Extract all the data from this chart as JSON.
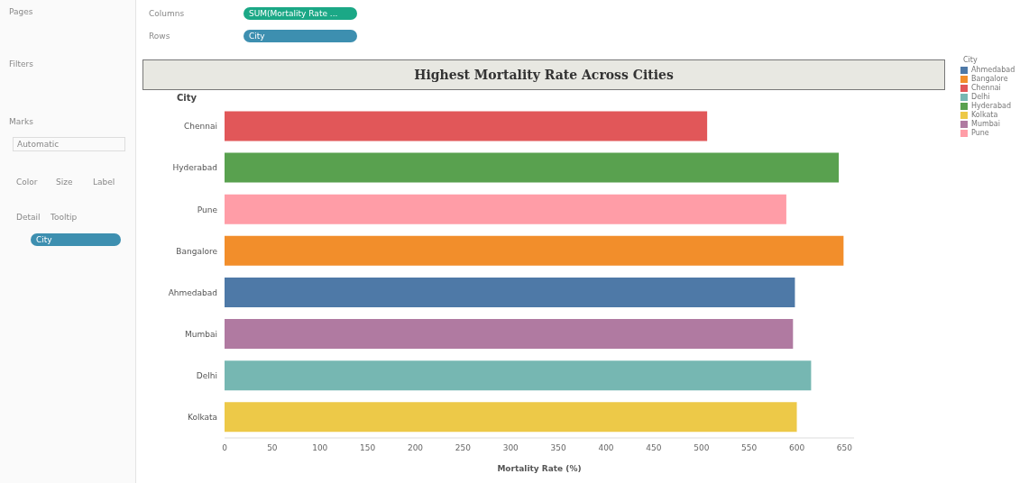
{
  "chart_data": {
    "type": "bar",
    "orientation": "horizontal",
    "stacked": true,
    "title": "Highest Mortality Rate Across Cities",
    "xlabel": "Mortality Rate (%)",
    "ylabel": "City",
    "legend_title": "City",
    "legend": "right",
    "grid": false,
    "categories": [
      "Chennai",
      "Hyderabad",
      "Pune",
      "Bangalore",
      "Ahmedabad",
      "Mumbai",
      "Delhi",
      "Kolkata"
    ],
    "series": [
      {
        "name": "Ahmedabad",
        "color": "#4e79a7",
        "values": [
          null,
          null,
          null,
          null,
          598,
          null,
          null,
          null
        ]
      },
      {
        "name": "Bangalore",
        "color": "#f28e2b",
        "values": [
          null,
          null,
          null,
          649,
          null,
          null,
          null,
          null
        ]
      },
      {
        "name": "Chennai",
        "color": "#e15759",
        "values": [
          506,
          null,
          null,
          null,
          null,
          null,
          null,
          null
        ]
      },
      {
        "name": "Delhi",
        "color": "#76b7b2",
        "values": [
          null,
          null,
          null,
          null,
          null,
          null,
          615,
          null
        ]
      },
      {
        "name": "Hyderabad",
        "color": "#59a14f",
        "values": [
          null,
          644,
          null,
          null,
          null,
          null,
          null,
          null
        ]
      },
      {
        "name": "Kolkata",
        "color": "#edc948",
        "values": [
          null,
          null,
          null,
          null,
          null,
          null,
          null,
          600
        ]
      },
      {
        "name": "Mumbai",
        "color": "#b07aa1",
        "values": [
          null,
          null,
          null,
          null,
          null,
          596,
          null,
          null
        ]
      },
      {
        "name": "Pune",
        "color": "#ff9da7",
        "values": [
          null,
          null,
          589,
          null,
          null,
          null,
          null,
          null
        ]
      }
    ],
    "xlim": [
      0,
      660
    ],
    "xticks": [
      0,
      50,
      100,
      150,
      200,
      250,
      300,
      350,
      400,
      450,
      500,
      550,
      600,
      650
    ],
    "annotations": [
      "Pages",
      "Columns",
      "SUM(Mortality Rate ...",
      "Rows",
      "City",
      "Filters",
      "Marks",
      "Automatic",
      "Color",
      "Size",
      "Label",
      "Detail",
      "Tooltip",
      "City"
    ]
  }
}
